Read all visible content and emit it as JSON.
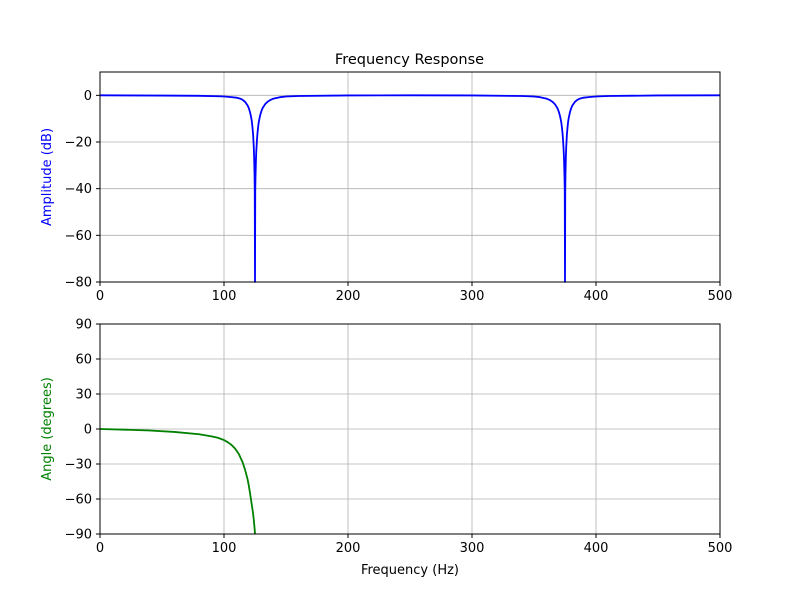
{
  "chart_data": [
    {
      "type": "line",
      "title": "Frequency Response",
      "xlabel": "",
      "ylabel": "Amplitude (dB)",
      "ylabel_color": "#0000ff",
      "line_color": "#0000ff",
      "xlim": [
        0,
        500
      ],
      "ylim": [
        -80,
        10
      ],
      "xticks": [
        0,
        100,
        200,
        300,
        400,
        500
      ],
      "yticks": [
        0,
        -20,
        -40,
        -60,
        -80
      ],
      "xtick_labels": [
        "0",
        "100",
        "200",
        "300",
        "400",
        "500"
      ],
      "ytick_labels": [
        "0",
        "−20",
        "−40",
        "−60",
        "−80"
      ],
      "grid": true,
      "series": [
        {
          "x": [
            0,
            50,
            80,
            95,
            100,
            105,
            110,
            113,
            115,
            117,
            119,
            120,
            121,
            122,
            122.5,
            123,
            123.5,
            124,
            124.3,
            124.6,
            124.8,
            125,
            125.2,
            125.4,
            125.7,
            126,
            126.5,
            127,
            127.5,
            128,
            129,
            130,
            131,
            133,
            135,
            137,
            140,
            145,
            150,
            160,
            200,
            250,
            300,
            340,
            350,
            355,
            360,
            363,
            365,
            367,
            369,
            370,
            371,
            372,
            372.5,
            373,
            373.5,
            374,
            374.3,
            374.6,
            374.8,
            375,
            375.2,
            375.4,
            375.7,
            376,
            376.5,
            377,
            377.5,
            378,
            379,
            380,
            381,
            383,
            385,
            387,
            390,
            395,
            400,
            410,
            450,
            500
          ],
          "y": [
            0,
            -0.1,
            -0.2,
            -0.4,
            -0.5,
            -0.7,
            -1.0,
            -1.4,
            -1.9,
            -2.8,
            -4.3,
            -5.5,
            -7.2,
            -9.7,
            -11.4,
            -13.9,
            -17.1,
            -22.0,
            -26.4,
            -33.0,
            -41.0,
            -80,
            -41.0,
            -35.0,
            -28.9,
            -24.5,
            -19.8,
            -16.2,
            -13.7,
            -11.6,
            -8.9,
            -7.0,
            -5.6,
            -3.9,
            -2.8,
            -2.1,
            -1.4,
            -0.8,
            -0.5,
            -0.3,
            -0.05,
            0,
            -0.05,
            -0.3,
            -0.5,
            -0.8,
            -1.4,
            -2.1,
            -2.8,
            -3.9,
            -5.6,
            -7.0,
            -8.9,
            -11.6,
            -13.7,
            -16.2,
            -19.8,
            -24.5,
            -28.9,
            -35.0,
            -41.0,
            -80,
            -41.0,
            -33.0,
            -26.4,
            -22.0,
            -17.1,
            -13.9,
            -11.4,
            -9.7,
            -7.2,
            -5.5,
            -4.3,
            -2.8,
            -1.9,
            -1.4,
            -1.0,
            -0.7,
            -0.5,
            -0.3,
            -0.05,
            0
          ]
        }
      ]
    },
    {
      "type": "line",
      "title": "",
      "xlabel": "Frequency (Hz)",
      "ylabel": "Angle (degrees)",
      "ylabel_color": "#008000",
      "line_color": "#008000",
      "xlim": [
        0,
        500
      ],
      "ylim": [
        -90,
        90
      ],
      "xticks": [
        0,
        100,
        200,
        300,
        400,
        500
      ],
      "yticks": [
        90,
        60,
        30,
        0,
        -30,
        -60,
        -90
      ],
      "xtick_labels": [
        "0",
        "100",
        "200",
        "300",
        "400",
        "500"
      ],
      "ytick_labels": [
        "90",
        "60",
        "30",
        "0",
        "−30",
        "−60",
        "−90"
      ],
      "grid": true,
      "series": [
        {
          "x": [
            0,
            20,
            40,
            60,
            80,
            90,
            95,
            100,
            103,
            106,
            109,
            112,
            115,
            117,
            119,
            120,
            121,
            122,
            123,
            123.5,
            124,
            124.3,
            124.6,
            124.8,
            125
          ],
          "y": [
            0,
            -0.6,
            -1.3,
            -2.5,
            -4.5,
            -6.3,
            -7.5,
            -9.5,
            -11.3,
            -13.6,
            -16.8,
            -21.5,
            -28.5,
            -35.0,
            -43.0,
            -48.5,
            -55.0,
            -62.0,
            -69.0,
            -73.0,
            -77.5,
            -81.0,
            -84.5,
            -87.0,
            -90
          ]
        }
      ]
    }
  ]
}
